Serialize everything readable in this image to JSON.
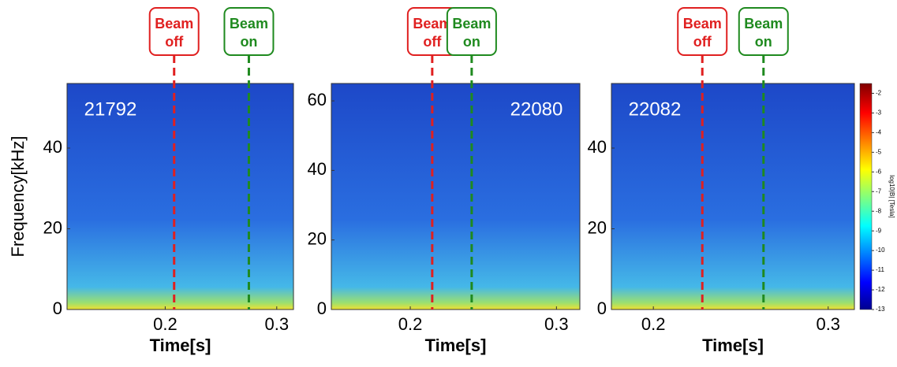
{
  "chart_data": [
    {
      "type": "spectrogram",
      "ylabel": "Frequency[kHz]",
      "xlabel": "Time[s]",
      "shot": "21792",
      "xlim": [
        0.112,
        0.315
      ],
      "ylim": [
        0,
        56
      ],
      "xticks": [
        0.2,
        0.3
      ],
      "yticks": [
        0,
        20,
        40
      ],
      "annotations": [
        {
          "lines": [
            "Beam",
            "off"
          ],
          "x": 0.208,
          "color": "#e02020"
        },
        {
          "lines": [
            "Beam",
            "on"
          ],
          "x": 0.275,
          "color": "#1f8a1f"
        }
      ]
    },
    {
      "type": "spectrogram",
      "xlabel": "Time[s]",
      "shot": "22080",
      "xlim": [
        0.146,
        0.316
      ],
      "ylim": [
        0,
        65
      ],
      "xticks": [
        0.2,
        0.3
      ],
      "yticks": [
        0,
        20,
        40,
        60
      ],
      "annotations": [
        {
          "lines": [
            "Beam",
            "off"
          ],
          "x": 0.215,
          "color": "#e02020"
        },
        {
          "lines": [
            "Beam",
            "on"
          ],
          "x": 0.242,
          "color": "#1f8a1f"
        }
      ]
    },
    {
      "type": "spectrogram",
      "xlabel": "Time[s]",
      "shot": "22082",
      "xlim": [
        0.176,
        0.315
      ],
      "ylim": [
        0,
        56
      ],
      "xticks": [
        0.2,
        0.3
      ],
      "yticks": [
        0,
        20,
        40
      ],
      "annotations": [
        {
          "lines": [
            "Beam",
            "off"
          ],
          "x": 0.228,
          "color": "#e02020"
        },
        {
          "lines": [
            "Beam",
            "on"
          ],
          "x": 0.263,
          "color": "#1f8a1f"
        }
      ],
      "colorbar": {
        "label": "log10|B| [Tesla]",
        "lim": [
          -13,
          -1.5
        ],
        "ticks": [
          -2,
          -3,
          -4,
          -5,
          -6,
          -7,
          -8,
          -9,
          -10,
          -11,
          -12,
          -13
        ]
      }
    }
  ]
}
